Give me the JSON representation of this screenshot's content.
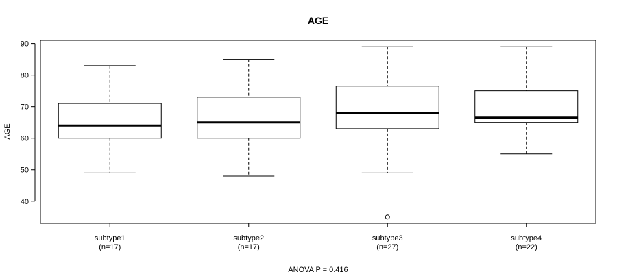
{
  "chart_data": {
    "type": "boxplot",
    "title": "AGE",
    "ylabel": "AGE",
    "xlabel": "",
    "ylim": [
      33,
      91
    ],
    "yticks": [
      40,
      50,
      60,
      70,
      80,
      90
    ],
    "footnote": "ANOVA P = 0.416",
    "grid": false,
    "groups": [
      {
        "name": "subtype1",
        "n_label": "(n=17)",
        "min": 49,
        "q1": 60,
        "median": 64,
        "q3": 71,
        "max": 83,
        "outliers": []
      },
      {
        "name": "subtype2",
        "n_label": "(n=17)",
        "min": 48,
        "q1": 60,
        "median": 65,
        "q3": 73,
        "max": 85,
        "outliers": []
      },
      {
        "name": "subtype3",
        "n_label": "(n=27)",
        "min": 49,
        "q1": 63,
        "median": 68,
        "q3": 76.5,
        "max": 89,
        "outliers": [
          35
        ]
      },
      {
        "name": "subtype4",
        "n_label": "(n=22)",
        "min": 55,
        "q1": 65,
        "median": 66.5,
        "q3": 75,
        "max": 89,
        "outliers": []
      }
    ]
  }
}
